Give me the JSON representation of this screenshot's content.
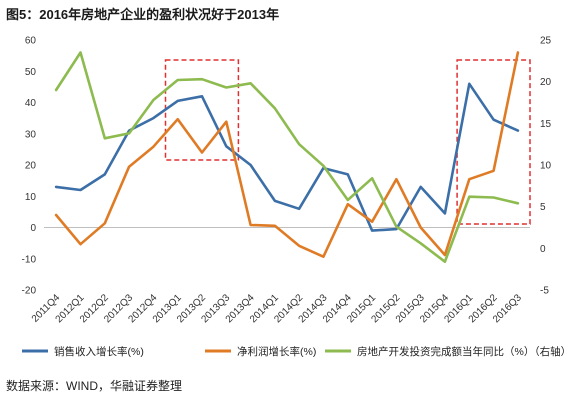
{
  "title": "图5：2016年房地产企业的盈利状况好于2013年",
  "source": "数据来源：WIND，华融证券整理",
  "chart_data": {
    "type": "line",
    "categories": [
      "2011Q4",
      "2012Q1",
      "2012Q2",
      "2012Q3",
      "2012Q4",
      "2013Q1",
      "2013Q2",
      "2013Q3",
      "2013Q4",
      "2014Q1",
      "2014Q2",
      "2014Q3",
      "2014Q4",
      "2015Q1",
      "2015Q2",
      "2015Q3",
      "2015Q4",
      "2016Q1",
      "2016Q2",
      "2016Q3"
    ],
    "y_left": {
      "min": -20,
      "max": 60,
      "ticks": [
        -20,
        -10,
        0,
        10,
        20,
        30,
        40,
        50,
        60
      ]
    },
    "y_right": {
      "min": -5,
      "max": 25,
      "ticks": [
        -5,
        0,
        5,
        10,
        15,
        20,
        25
      ]
    },
    "grid": false,
    "legend_position": "bottom",
    "series": [
      {
        "name": "销售收入增长率(%)",
        "axis": "left",
        "color": "#3c6fa8",
        "values": [
          13,
          12,
          17,
          31,
          35,
          40.5,
          42,
          26,
          20,
          8.5,
          6,
          19,
          17,
          -1,
          -0.5,
          13,
          4.5,
          46,
          34.5,
          31
        ]
      },
      {
        "name": "净利润增长率(%)",
        "axis": "right",
        "color": "#e07b25",
        "values": [
          4,
          0.5,
          3,
          9.8,
          12.2,
          15.5,
          11.5,
          15.2,
          2.8,
          2.7,
          0.3,
          -1,
          5.3,
          3.2,
          8.3,
          2.5,
          -0.8,
          8.3,
          9.3,
          23.5
        ]
      },
      {
        "name": "房地产开发投资完成额当年同比（%）（右轴）",
        "axis": "right",
        "color": "#8dbb4f",
        "values": [
          19,
          23.5,
          13.2,
          13.8,
          17.8,
          20.2,
          20.3,
          19.3,
          19.8,
          16.8,
          12.5,
          9.9,
          5.8,
          8.4,
          2.6,
          0.6,
          -1.6,
          6.2,
          6.1,
          5.4
        ]
      }
    ],
    "highlights": [
      {
        "from": "2013Q1",
        "to": "2013Q3"
      },
      {
        "from": "2016Q1",
        "to": "2016Q3"
      }
    ]
  }
}
